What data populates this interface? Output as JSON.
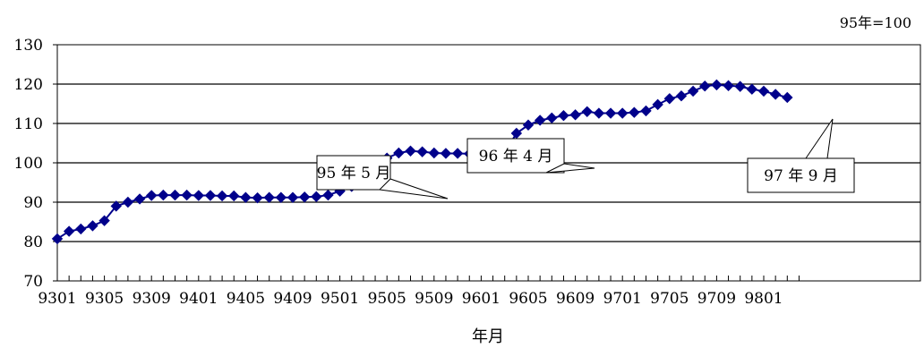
{
  "chart_data": {
    "type": "line",
    "base_note": "95年=100",
    "xlabel": "年月",
    "ylabel": "",
    "ylim": [
      70,
      130
    ],
    "yticks": [
      70,
      80,
      90,
      100,
      110,
      120,
      130
    ],
    "grid": true,
    "xtick_labels": [
      "9301",
      "9305",
      "9309",
      "9401",
      "9405",
      "9409",
      "9501",
      "9505",
      "9509",
      "9601",
      "9605",
      "9609",
      "9701",
      "9705",
      "9709",
      "9801"
    ],
    "series": [
      {
        "color": "#00008B",
        "marker": "diamond",
        "x": [
          "9301",
          "9302",
          "9303",
          "9304",
          "9305",
          "9306",
          "9307",
          "9308",
          "9309",
          "9310",
          "9311",
          "9312",
          "9401",
          "9402",
          "9403",
          "9404",
          "9405",
          "9406",
          "9407",
          "9408",
          "9409",
          "9410",
          "9411",
          "9412",
          "9501",
          "9502",
          "9503",
          "9504",
          "9505",
          "9506",
          "9507",
          "9508",
          "9509",
          "9510",
          "9511",
          "9512",
          "9601",
          "9602",
          "9603",
          "9604",
          "9605",
          "9606",
          "9607",
          "9608",
          "9609",
          "9610",
          "9611",
          "9612",
          "9701",
          "9702",
          "9703",
          "9704",
          "9705",
          "9706",
          "9707",
          "9708",
          "9709",
          "9710",
          "9711",
          "9712",
          "9801",
          "9802",
          "9803"
        ],
        "values": [
          80.7,
          82.6,
          83.2,
          84.0,
          85.3,
          89.0,
          90.0,
          90.8,
          91.7,
          91.8,
          91.8,
          91.8,
          91.7,
          91.7,
          91.6,
          91.6,
          91.2,
          91.1,
          91.2,
          91.2,
          91.2,
          91.3,
          91.4,
          91.8,
          92.8,
          94.0,
          94.5,
          95.0,
          101.2,
          102.5,
          103.0,
          102.8,
          102.5,
          102.4,
          102.4,
          102.3,
          102.0,
          101.8,
          102.6,
          107.5,
          109.6,
          110.8,
          111.4,
          112.0,
          112.2,
          113.0,
          112.6,
          112.6,
          112.6,
          112.8,
          113.2,
          114.8,
          116.3,
          117.0,
          118.2,
          119.5,
          119.8,
          119.6,
          119.4,
          118.7,
          118.2,
          117.4,
          116.6
        ]
      }
    ],
    "annotations": [
      {
        "text": "95 年 5 月",
        "target_x": "9505"
      },
      {
        "text": "96 年 4 月",
        "target_x": "9604"
      },
      {
        "text": "97 年 9 月",
        "target_x": "9709"
      }
    ]
  }
}
